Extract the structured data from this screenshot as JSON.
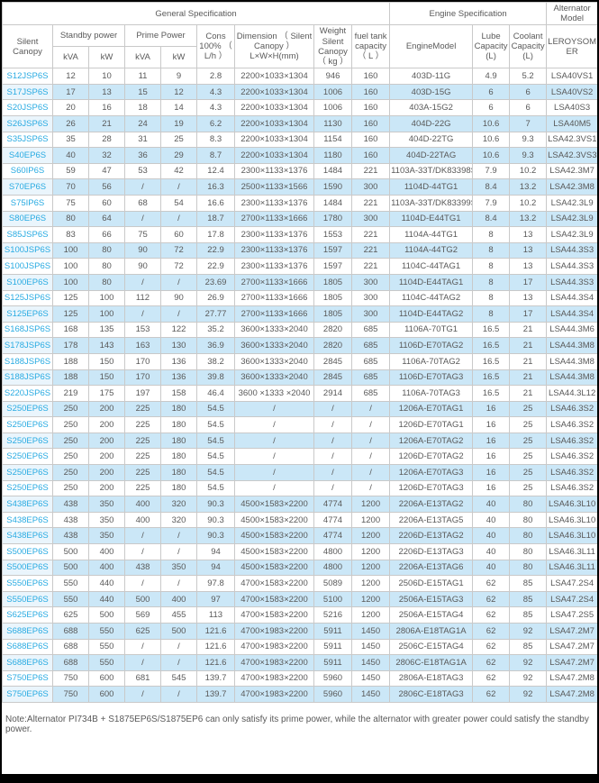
{
  "colors": {
    "accent": "#29ABE2",
    "stripe": "#CBE7F7",
    "stripe_first": "#EAF5FC",
    "border": "#C9C9C9",
    "text": "#595959"
  },
  "table": {
    "header": {
      "general_spec": "General Specification",
      "engine_spec": "Engine Specification",
      "alternator_model": "Alternator Model",
      "silent_canopy": "Silent Canopy",
      "standby_power": "Standby power",
      "prime_power": "Prime Power",
      "kva": "kVA",
      "kw": "kW",
      "cons": "Cons 100% （ L/h ）",
      "dimension": "Dimension （ Silent Canopy ） L×W×H(mm)",
      "weight": "Weight Silent Canopy （ kg ）",
      "fuel": "fuel tank capacity （ L ）",
      "engine_model": "EngineModel",
      "lube": "Lube Capacity (L)",
      "coolant": "Coolant Capacity (L)",
      "leroysomer": "LEROYSOMER"
    },
    "rows": [
      [
        "S12JSP6S",
        "12",
        "10",
        "11",
        "9",
        "2.8",
        "2200×1033×1304",
        "946",
        "160",
        "403D-11G",
        "4.9",
        "5.2",
        "LSA40VS1"
      ],
      [
        "S17JSP6S",
        "17",
        "13",
        "15",
        "12",
        "4.3",
        "2200×1033×1304",
        "1006",
        "160",
        "403D-15G",
        "6",
        "6",
        "LSA40VS2"
      ],
      [
        "S20JSP6S",
        "20",
        "16",
        "18",
        "14",
        "4.3",
        "2200×1033×1304",
        "1006",
        "160",
        "403A-15G2",
        "6",
        "6",
        "LSA40S3"
      ],
      [
        "S26JSP6S",
        "26",
        "21",
        "24",
        "19",
        "6.2",
        "2200×1033×1304",
        "1130",
        "160",
        "404D-22G",
        "10.6",
        "7",
        "LSA40M5"
      ],
      [
        "S35JSP6S",
        "35",
        "28",
        "31",
        "25",
        "8.3",
        "2200×1033×1304",
        "1154",
        "160",
        "404D-22TG",
        "10.6",
        "9.3",
        "LSA42.3VS1"
      ],
      [
        "S40EP6S",
        "40",
        "32",
        "36",
        "29",
        "8.7",
        "2200×1033×1304",
        "1180",
        "160",
        "404D-22TAG",
        "10.6",
        "9.3",
        "LSA42.3VS3"
      ],
      [
        "S60IP6S",
        "59",
        "47",
        "53",
        "42",
        "12.4",
        "2300×1133×1376",
        "1484",
        "221",
        "1103A-33T/DK83398S",
        "7.9",
        "10.2",
        "LSA42.3M7"
      ],
      [
        "S70EP6S",
        "70",
        "56",
        "/",
        "/",
        "16.3",
        "2500×1133×1566",
        "1590",
        "300",
        "1104D-44TG1",
        "8.4",
        "13.2",
        "LSA42.3M8"
      ],
      [
        "S75IP6S",
        "75",
        "60",
        "68",
        "54",
        "16.6",
        "2300×1133×1376",
        "1484",
        "221",
        "1103A-33T/DK83399S",
        "7.9",
        "10.2",
        "LSA42.3L9"
      ],
      [
        "S80EP6S",
        "80",
        "64",
        "/",
        "/",
        "18.7",
        "2700×1133×1666",
        "1780",
        "300",
        "1104D-E44TG1",
        "8.4",
        "13.2",
        "LSA42.3L9"
      ],
      [
        "S85JSP6S",
        "83",
        "66",
        "75",
        "60",
        "17.8",
        "2300×1133×1376",
        "1553",
        "221",
        "1104A-44TG1",
        "8",
        "13",
        "LSA42.3L9"
      ],
      [
        "S100JSP6S",
        "100",
        "80",
        "90",
        "72",
        "22.9",
        "2300×1133×1376",
        "1597",
        "221",
        "1104A-44TG2",
        "8",
        "13",
        "LSA44.3S3"
      ],
      [
        "S100JSP6S",
        "100",
        "80",
        "90",
        "72",
        "22.9",
        "2300×1133×1376",
        "1597",
        "221",
        "1104C-44TAG1",
        "8",
        "13",
        "LSA44.3S3"
      ],
      [
        "S100EP6S",
        "100",
        "80",
        "/",
        "/",
        "23.69",
        "2700×1133×1666",
        "1805",
        "300",
        "1104D-E44TAG1",
        "8",
        "17",
        "LSA44.3S3"
      ],
      [
        "S125JSP6S",
        "125",
        "100",
        "112",
        "90",
        "26.9",
        "2700×1133×1666",
        "1805",
        "300",
        "1104C-44TAG2",
        "8",
        "13",
        "LSA44.3S4"
      ],
      [
        "S125EP6S",
        "125",
        "100",
        "/",
        "/",
        "27.77",
        "2700×1133×1666",
        "1805",
        "300",
        "1104D-E44TAG2",
        "8",
        "17",
        "LSA44.3S4"
      ],
      [
        "S168JSP6S",
        "168",
        "135",
        "153",
        "122",
        "35.2",
        "3600×1333×2040",
        "2820",
        "685",
        "1106A-70TG1",
        "16.5",
        "21",
        "LSA44.3M6"
      ],
      [
        "S178JSP6S",
        "178",
        "143",
        "163",
        "130",
        "36.9",
        "3600×1333×2040",
        "2820",
        "685",
        "1106D-E70TAG2",
        "16.5",
        "21",
        "LSA44.3M8"
      ],
      [
        "S188JSP6S",
        "188",
        "150",
        "170",
        "136",
        "38.2",
        "3600×1333×2040",
        "2845",
        "685",
        "1106A-70TAG2",
        "16.5",
        "21",
        "LSA44.3M8"
      ],
      [
        "S188JSP6S",
        "188",
        "150",
        "170",
        "136",
        "39.8",
        "3600×1333×2040",
        "2845",
        "685",
        "1106D-E70TAG3",
        "16.5",
        "21",
        "LSA44.3M8"
      ],
      [
        "S220JSP6S",
        "219",
        "175",
        "197",
        "158",
        "46.4",
        "3600 ×1333 ×2040",
        "2914",
        "685",
        "1106A-70TAG3",
        "16.5",
        "21",
        "LSA44.3L12"
      ],
      [
        "S250EP6S",
        "250",
        "200",
        "225",
        "180",
        "54.5",
        "/",
        "/",
        "/",
        "1206A-E70TAG1",
        "16",
        "25",
        "LSA46.3S2"
      ],
      [
        "S250EP6S",
        "250",
        "200",
        "225",
        "180",
        "54.5",
        "/",
        "/",
        "/",
        "1206D-E70TAG1",
        "16",
        "25",
        "LSA46.3S2"
      ],
      [
        "S250EP6S",
        "250",
        "200",
        "225",
        "180",
        "54.5",
        "/",
        "/",
        "/",
        "1206A-E70TAG2",
        "16",
        "25",
        "LSA46.3S2"
      ],
      [
        "S250EP6S",
        "250",
        "200",
        "225",
        "180",
        "54.5",
        "/",
        "/",
        "/",
        "1206D-E70TAG2",
        "16",
        "25",
        "LSA46.3S2"
      ],
      [
        "S250EP6S",
        "250",
        "200",
        "225",
        "180",
        "54.5",
        "/",
        "/",
        "/",
        "1206A-E70TAG3",
        "16",
        "25",
        "LSA46.3S2"
      ],
      [
        "S250EP6S",
        "250",
        "200",
        "225",
        "180",
        "54.5",
        "/",
        "/",
        "/",
        "1206D-E70TAG3",
        "16",
        "25",
        "LSA46.3S2"
      ],
      [
        "S438EP6S",
        "438",
        "350",
        "400",
        "320",
        "90.3",
        "4500×1583×2200",
        "4774",
        "1200",
        "2206A-E13TAG2",
        "40",
        "80",
        "LSA46.3L10"
      ],
      [
        "S438EP6S",
        "438",
        "350",
        "400",
        "320",
        "90.3",
        "4500×1583×2200",
        "4774",
        "1200",
        "2206A-E13TAG5",
        "40",
        "80",
        "LSA46.3L10"
      ],
      [
        "S438EP6S",
        "438",
        "350",
        "/",
        "/",
        "90.3",
        "4500×1583×2200",
        "4774",
        "1200",
        "2206D-E13TAG2",
        "40",
        "80",
        "LSA46.3L10"
      ],
      [
        "S500EP6S",
        "500",
        "400",
        "/",
        "/",
        "94",
        "4500×1583×2200",
        "4800",
        "1200",
        "2206D-E13TAG3",
        "40",
        "80",
        "LSA46.3L11"
      ],
      [
        "S500EP6S",
        "500",
        "400",
        "438",
        "350",
        "94",
        "4500×1583×2200",
        "4800",
        "1200",
        "2206A-E13TAG6",
        "40",
        "80",
        "LSA46.3L11"
      ],
      [
        "S550EP6S",
        "550",
        "440",
        "/",
        "/",
        "97.8",
        "4700×1583×2200",
        "5089",
        "1200",
        "2506D-E15TAG1",
        "62",
        "85",
        "LSA47.2S4"
      ],
      [
        "S550EP6S",
        "550",
        "440",
        "500",
        "400",
        "97",
        "4700×1583×2200",
        "5100",
        "1200",
        "2506A-E15TAG3",
        "62",
        "85",
        "LSA47.2S4"
      ],
      [
        "S625EP6S",
        "625",
        "500",
        "569",
        "455",
        "113",
        "4700×1583×2200",
        "5216",
        "1200",
        "2506A-E15TAG4",
        "62",
        "85",
        "LSA47.2S5"
      ],
      [
        "S688EP6S",
        "688",
        "550",
        "625",
        "500",
        "121.6",
        "4700×1983×2200",
        "5911",
        "1450",
        "2806A-E18TAG1A",
        "62",
        "92",
        "LSA47.2M7"
      ],
      [
        "S688EP6S",
        "688",
        "550",
        "/",
        "/",
        "121.6",
        "4700×1983×2200",
        "5911",
        "1450",
        "2506C-E15TAG4",
        "62",
        "85",
        "LSA47.2M7"
      ],
      [
        "S688EP6S",
        "688",
        "550",
        "/",
        "/",
        "121.6",
        "4700×1983×2200",
        "5911",
        "1450",
        "2806C-E18TAG1A",
        "62",
        "92",
        "LSA47.2M7"
      ],
      [
        "S750EP6S",
        "750",
        "600",
        "681",
        "545",
        "139.7",
        "4700×1983×2200",
        "5960",
        "1450",
        "2806A-E18TAG3",
        "62",
        "92",
        "LSA47.2M8"
      ],
      [
        "S750EP6S",
        "750",
        "600",
        "/",
        "/",
        "139.7",
        "4700×1983×2200",
        "5960",
        "1450",
        "2806C-E18TAG3",
        "62",
        "92",
        "LSA47.2M8"
      ]
    ]
  },
  "note": "Note:Alternator PI734B + S1875EP6S/S1875EP6 can only satisfy its prime power, while the alternator with greater power could satisfy the standby power."
}
